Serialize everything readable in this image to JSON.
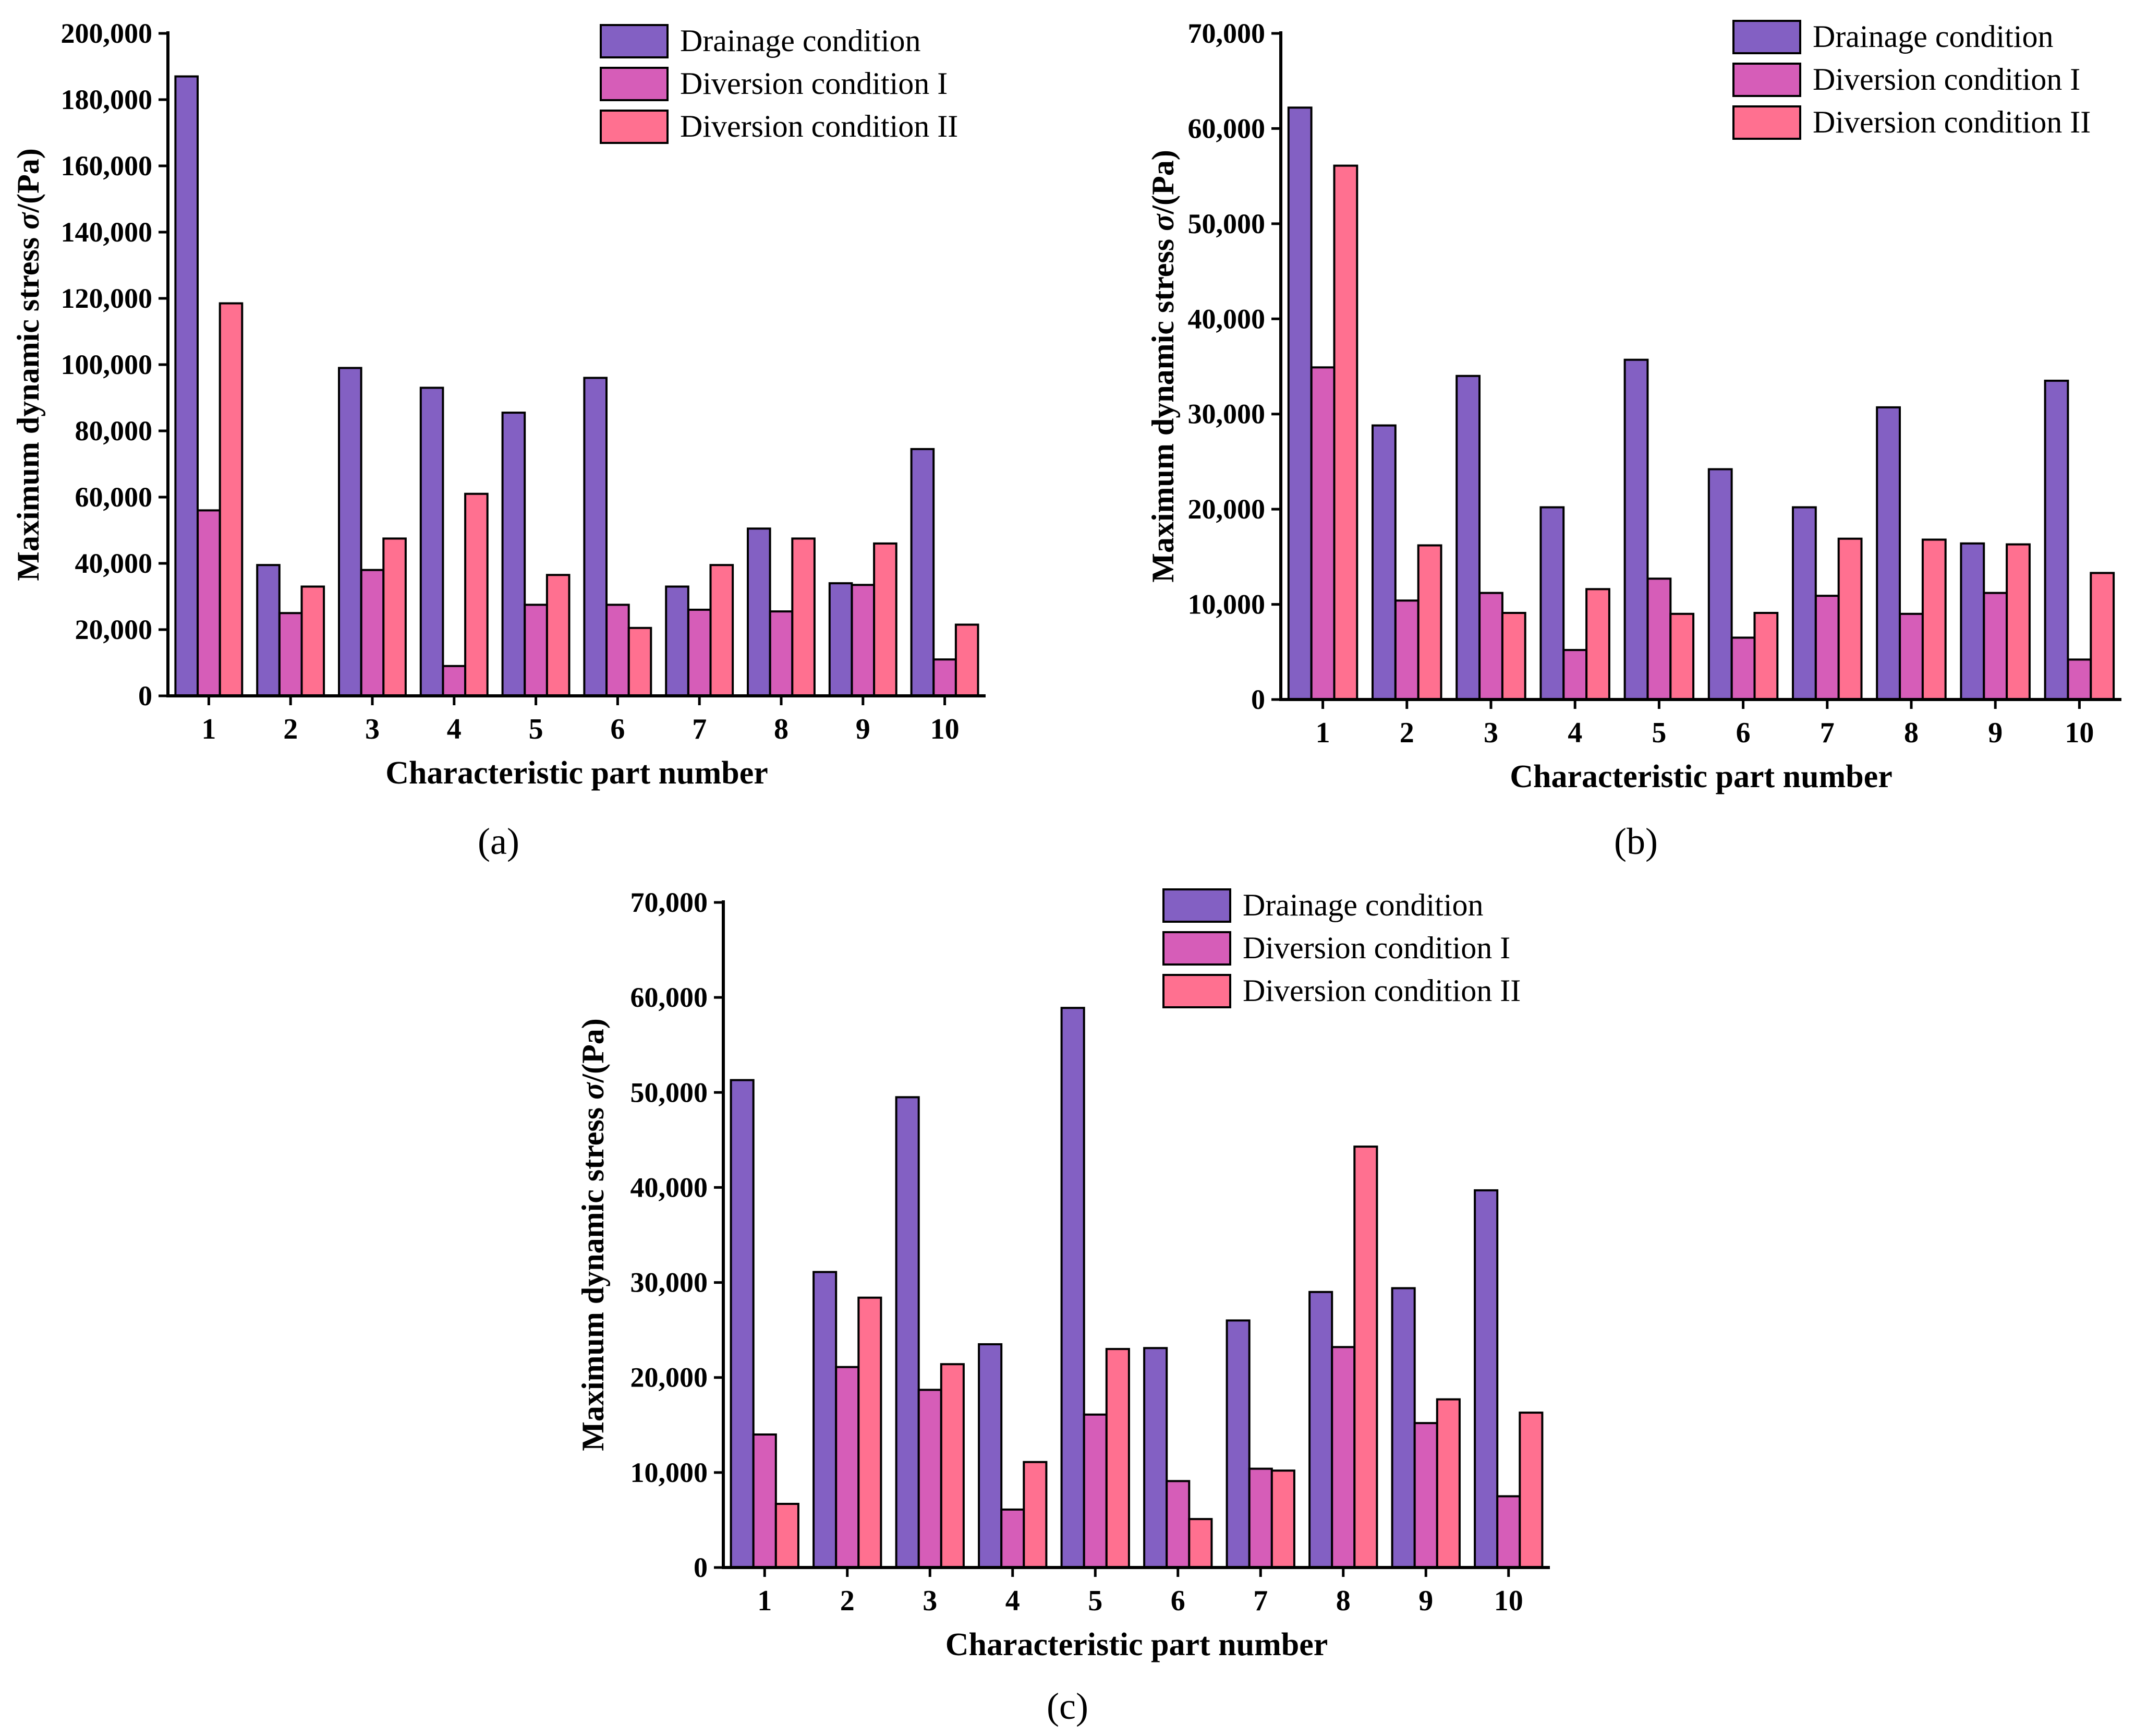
{
  "figure": {
    "captions": [
      "(a)",
      "(b)",
      "(c)"
    ]
  },
  "colors": {
    "drainage": "#8360c3",
    "diversion_1": "#d65db8",
    "diversion_2": "#ff7090",
    "axis": "#000000"
  },
  "chart_data": [
    {
      "type": "bar",
      "panel": "(a)",
      "categories": [
        "1",
        "2",
        "3",
        "4",
        "5",
        "6",
        "7",
        "8",
        "9",
        "10"
      ],
      "xlabel": "Characteristic part number",
      "ylabel_prefix": "Maximum dynamic stress ",
      "ylabel_symbol": "σ",
      "ylabel_suffix": "/(Pa)",
      "ylim": [
        0,
        200000
      ],
      "yticks": [
        0,
        20000,
        40000,
        60000,
        80000,
        100000,
        120000,
        140000,
        160000,
        180000,
        200000
      ],
      "ytick_labels": [
        "0",
        "20,000",
        "40,000",
        "60,000",
        "80,000",
        "100,000",
        "120,000",
        "140,000",
        "160,000",
        "180,000",
        "200,000"
      ],
      "legend_position": "top-right",
      "grid": false,
      "series": [
        {
          "name": "Drainage condition",
          "values": [
            187000,
            39500,
            99000,
            93000,
            85500,
            96000,
            33000,
            50500,
            34000,
            74500
          ]
        },
        {
          "name": "Diversion condition I",
          "values": [
            56000,
            25000,
            38000,
            9000,
            27500,
            27500,
            26000,
            25500,
            33500,
            11000
          ]
        },
        {
          "name": "Diversion condition II",
          "values": [
            118500,
            33000,
            47500,
            61000,
            36500,
            20500,
            39500,
            47500,
            46000,
            21500
          ]
        }
      ]
    },
    {
      "type": "bar",
      "panel": "(b)",
      "categories": [
        "1",
        "2",
        "3",
        "4",
        "5",
        "6",
        "7",
        "8",
        "9",
        "10"
      ],
      "xlabel": "Characteristic part number",
      "ylabel_prefix": "Maximum dynamic stress ",
      "ylabel_symbol": "σ",
      "ylabel_suffix": "/(Pa)",
      "ylim": [
        0,
        70000
      ],
      "yticks": [
        0,
        10000,
        20000,
        30000,
        40000,
        50000,
        60000,
        70000
      ],
      "ytick_labels": [
        "0",
        "10,000",
        "20,000",
        "30,000",
        "40,000",
        "50,000",
        "60,000",
        "70,000"
      ],
      "legend_position": "top-right",
      "grid": false,
      "series": [
        {
          "name": "Drainage condition",
          "values": [
            62200,
            28800,
            34000,
            20200,
            35700,
            24200,
            20200,
            30700,
            16400,
            33500
          ]
        },
        {
          "name": "Diversion condition I",
          "values": [
            34900,
            10400,
            11200,
            5200,
            12700,
            6500,
            10900,
            9000,
            11200,
            4200
          ]
        },
        {
          "name": "Diversion condition II",
          "values": [
            56100,
            16200,
            9100,
            11600,
            9000,
            9100,
            16900,
            16800,
            16300,
            13300
          ]
        }
      ]
    },
    {
      "type": "bar",
      "panel": "(c)",
      "categories": [
        "1",
        "2",
        "3",
        "4",
        "5",
        "6",
        "7",
        "8",
        "9",
        "10"
      ],
      "xlabel": "Characteristic part number",
      "ylabel_prefix": "Maximum dynamic stress ",
      "ylabel_symbol": "σ",
      "ylabel_suffix": "/(Pa)",
      "ylim": [
        0,
        70000
      ],
      "yticks": [
        0,
        10000,
        20000,
        30000,
        40000,
        50000,
        60000,
        70000
      ],
      "ytick_labels": [
        "0",
        "10,000",
        "20,000",
        "30,000",
        "40,000",
        "50,000",
        "60,000",
        "70,000"
      ],
      "legend_position": "top-right",
      "grid": false,
      "series": [
        {
          "name": "Drainage condition",
          "values": [
            51300,
            31100,
            49500,
            23500,
            58900,
            23100,
            26000,
            29000,
            29400,
            39700
          ]
        },
        {
          "name": "Diversion condition I",
          "values": [
            14000,
            21100,
            18700,
            6100,
            16100,
            9100,
            10400,
            23200,
            15200,
            7500
          ]
        },
        {
          "name": "Diversion condition II",
          "values": [
            6700,
            28400,
            21400,
            11100,
            23000,
            5100,
            10200,
            44300,
            17700,
            16300
          ]
        }
      ]
    }
  ]
}
